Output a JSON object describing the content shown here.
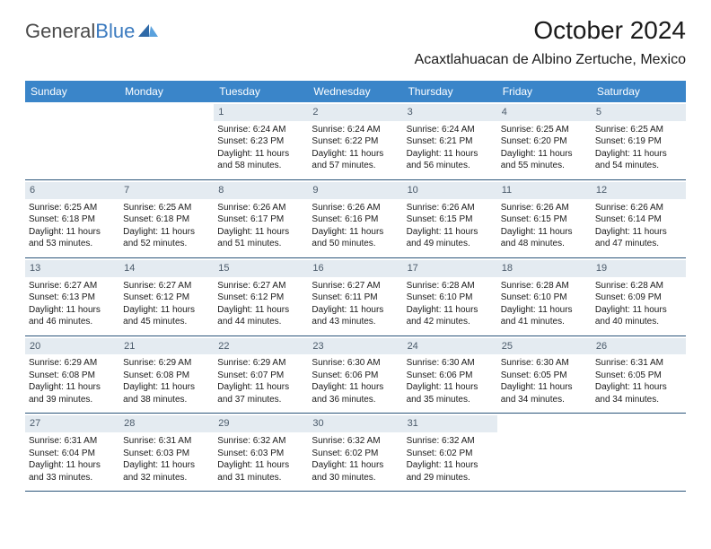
{
  "brand": {
    "name_part1": "General",
    "name_part2": "Blue",
    "color_general": "#4a4a4a",
    "color_blue": "#3a7abf"
  },
  "header": {
    "month_title": "October 2024",
    "location": "Acaxtlahuacan de Albino Zertuche, Mexico"
  },
  "colors": {
    "header_bg": "#3a85c9",
    "header_text": "#ffffff",
    "daynum_bg": "#e4ebf1",
    "daynum_text": "#4a5a6a",
    "week_border": "#2a547a"
  },
  "weekdays": [
    "Sunday",
    "Monday",
    "Tuesday",
    "Wednesday",
    "Thursday",
    "Friday",
    "Saturday"
  ],
  "days": [
    {
      "num": "",
      "sunrise": "",
      "sunset": "",
      "daylight": ""
    },
    {
      "num": "",
      "sunrise": "",
      "sunset": "",
      "daylight": ""
    },
    {
      "num": "1",
      "sunrise": "Sunrise: 6:24 AM",
      "sunset": "Sunset: 6:23 PM",
      "daylight": "Daylight: 11 hours and 58 minutes."
    },
    {
      "num": "2",
      "sunrise": "Sunrise: 6:24 AM",
      "sunset": "Sunset: 6:22 PM",
      "daylight": "Daylight: 11 hours and 57 minutes."
    },
    {
      "num": "3",
      "sunrise": "Sunrise: 6:24 AM",
      "sunset": "Sunset: 6:21 PM",
      "daylight": "Daylight: 11 hours and 56 minutes."
    },
    {
      "num": "4",
      "sunrise": "Sunrise: 6:25 AM",
      "sunset": "Sunset: 6:20 PM",
      "daylight": "Daylight: 11 hours and 55 minutes."
    },
    {
      "num": "5",
      "sunrise": "Sunrise: 6:25 AM",
      "sunset": "Sunset: 6:19 PM",
      "daylight": "Daylight: 11 hours and 54 minutes."
    },
    {
      "num": "6",
      "sunrise": "Sunrise: 6:25 AM",
      "sunset": "Sunset: 6:18 PM",
      "daylight": "Daylight: 11 hours and 53 minutes."
    },
    {
      "num": "7",
      "sunrise": "Sunrise: 6:25 AM",
      "sunset": "Sunset: 6:18 PM",
      "daylight": "Daylight: 11 hours and 52 minutes."
    },
    {
      "num": "8",
      "sunrise": "Sunrise: 6:26 AM",
      "sunset": "Sunset: 6:17 PM",
      "daylight": "Daylight: 11 hours and 51 minutes."
    },
    {
      "num": "9",
      "sunrise": "Sunrise: 6:26 AM",
      "sunset": "Sunset: 6:16 PM",
      "daylight": "Daylight: 11 hours and 50 minutes."
    },
    {
      "num": "10",
      "sunrise": "Sunrise: 6:26 AM",
      "sunset": "Sunset: 6:15 PM",
      "daylight": "Daylight: 11 hours and 49 minutes."
    },
    {
      "num": "11",
      "sunrise": "Sunrise: 6:26 AM",
      "sunset": "Sunset: 6:15 PM",
      "daylight": "Daylight: 11 hours and 48 minutes."
    },
    {
      "num": "12",
      "sunrise": "Sunrise: 6:26 AM",
      "sunset": "Sunset: 6:14 PM",
      "daylight": "Daylight: 11 hours and 47 minutes."
    },
    {
      "num": "13",
      "sunrise": "Sunrise: 6:27 AM",
      "sunset": "Sunset: 6:13 PM",
      "daylight": "Daylight: 11 hours and 46 minutes."
    },
    {
      "num": "14",
      "sunrise": "Sunrise: 6:27 AM",
      "sunset": "Sunset: 6:12 PM",
      "daylight": "Daylight: 11 hours and 45 minutes."
    },
    {
      "num": "15",
      "sunrise": "Sunrise: 6:27 AM",
      "sunset": "Sunset: 6:12 PM",
      "daylight": "Daylight: 11 hours and 44 minutes."
    },
    {
      "num": "16",
      "sunrise": "Sunrise: 6:27 AM",
      "sunset": "Sunset: 6:11 PM",
      "daylight": "Daylight: 11 hours and 43 minutes."
    },
    {
      "num": "17",
      "sunrise": "Sunrise: 6:28 AM",
      "sunset": "Sunset: 6:10 PM",
      "daylight": "Daylight: 11 hours and 42 minutes."
    },
    {
      "num": "18",
      "sunrise": "Sunrise: 6:28 AM",
      "sunset": "Sunset: 6:10 PM",
      "daylight": "Daylight: 11 hours and 41 minutes."
    },
    {
      "num": "19",
      "sunrise": "Sunrise: 6:28 AM",
      "sunset": "Sunset: 6:09 PM",
      "daylight": "Daylight: 11 hours and 40 minutes."
    },
    {
      "num": "20",
      "sunrise": "Sunrise: 6:29 AM",
      "sunset": "Sunset: 6:08 PM",
      "daylight": "Daylight: 11 hours and 39 minutes."
    },
    {
      "num": "21",
      "sunrise": "Sunrise: 6:29 AM",
      "sunset": "Sunset: 6:08 PM",
      "daylight": "Daylight: 11 hours and 38 minutes."
    },
    {
      "num": "22",
      "sunrise": "Sunrise: 6:29 AM",
      "sunset": "Sunset: 6:07 PM",
      "daylight": "Daylight: 11 hours and 37 minutes."
    },
    {
      "num": "23",
      "sunrise": "Sunrise: 6:30 AM",
      "sunset": "Sunset: 6:06 PM",
      "daylight": "Daylight: 11 hours and 36 minutes."
    },
    {
      "num": "24",
      "sunrise": "Sunrise: 6:30 AM",
      "sunset": "Sunset: 6:06 PM",
      "daylight": "Daylight: 11 hours and 35 minutes."
    },
    {
      "num": "25",
      "sunrise": "Sunrise: 6:30 AM",
      "sunset": "Sunset: 6:05 PM",
      "daylight": "Daylight: 11 hours and 34 minutes."
    },
    {
      "num": "26",
      "sunrise": "Sunrise: 6:31 AM",
      "sunset": "Sunset: 6:05 PM",
      "daylight": "Daylight: 11 hours and 34 minutes."
    },
    {
      "num": "27",
      "sunrise": "Sunrise: 6:31 AM",
      "sunset": "Sunset: 6:04 PM",
      "daylight": "Daylight: 11 hours and 33 minutes."
    },
    {
      "num": "28",
      "sunrise": "Sunrise: 6:31 AM",
      "sunset": "Sunset: 6:03 PM",
      "daylight": "Daylight: 11 hours and 32 minutes."
    },
    {
      "num": "29",
      "sunrise": "Sunrise: 6:32 AM",
      "sunset": "Sunset: 6:03 PM",
      "daylight": "Daylight: 11 hours and 31 minutes."
    },
    {
      "num": "30",
      "sunrise": "Sunrise: 6:32 AM",
      "sunset": "Sunset: 6:02 PM",
      "daylight": "Daylight: 11 hours and 30 minutes."
    },
    {
      "num": "31",
      "sunrise": "Sunrise: 6:32 AM",
      "sunset": "Sunset: 6:02 PM",
      "daylight": "Daylight: 11 hours and 29 minutes."
    },
    {
      "num": "",
      "sunrise": "",
      "sunset": "",
      "daylight": ""
    },
    {
      "num": "",
      "sunrise": "",
      "sunset": "",
      "daylight": ""
    }
  ]
}
